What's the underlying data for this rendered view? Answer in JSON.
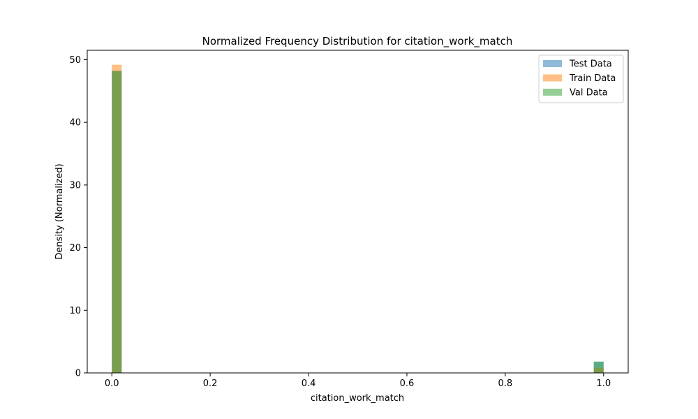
{
  "chart_data": {
    "type": "bar",
    "title": "Normalized Frequency Distribution for citation_work_match",
    "xlabel": "citation_work_match",
    "ylabel": "Density (Normalized)",
    "xlim": [
      -0.05,
      1.05
    ],
    "ylim": [
      0,
      51.5
    ],
    "xticks": [
      0.0,
      0.2,
      0.4,
      0.6,
      0.8,
      1.0
    ],
    "xtick_labels": [
      "0.0",
      "0.2",
      "0.4",
      "0.6",
      "0.8",
      "1.0"
    ],
    "yticks": [
      0,
      10,
      20,
      30,
      40,
      50
    ],
    "ytick_labels": [
      "0",
      "10",
      "20",
      "30",
      "40",
      "50"
    ],
    "grid": false,
    "legend_position": "top-right",
    "bin_width": 0.02,
    "bins": [
      0.0,
      0.98
    ],
    "series": [
      {
        "name": "Test Data",
        "color": "#1f77b4",
        "opacity": 0.5,
        "values": [
          48.2,
          1.8
        ]
      },
      {
        "name": "Train Data",
        "color": "#ff7f0e",
        "opacity": 0.5,
        "values": [
          49.2,
          0.8
        ]
      },
      {
        "name": "Val Data",
        "color": "#2ca02c",
        "opacity": 0.5,
        "values": [
          48.2,
          1.8
        ]
      }
    ]
  }
}
